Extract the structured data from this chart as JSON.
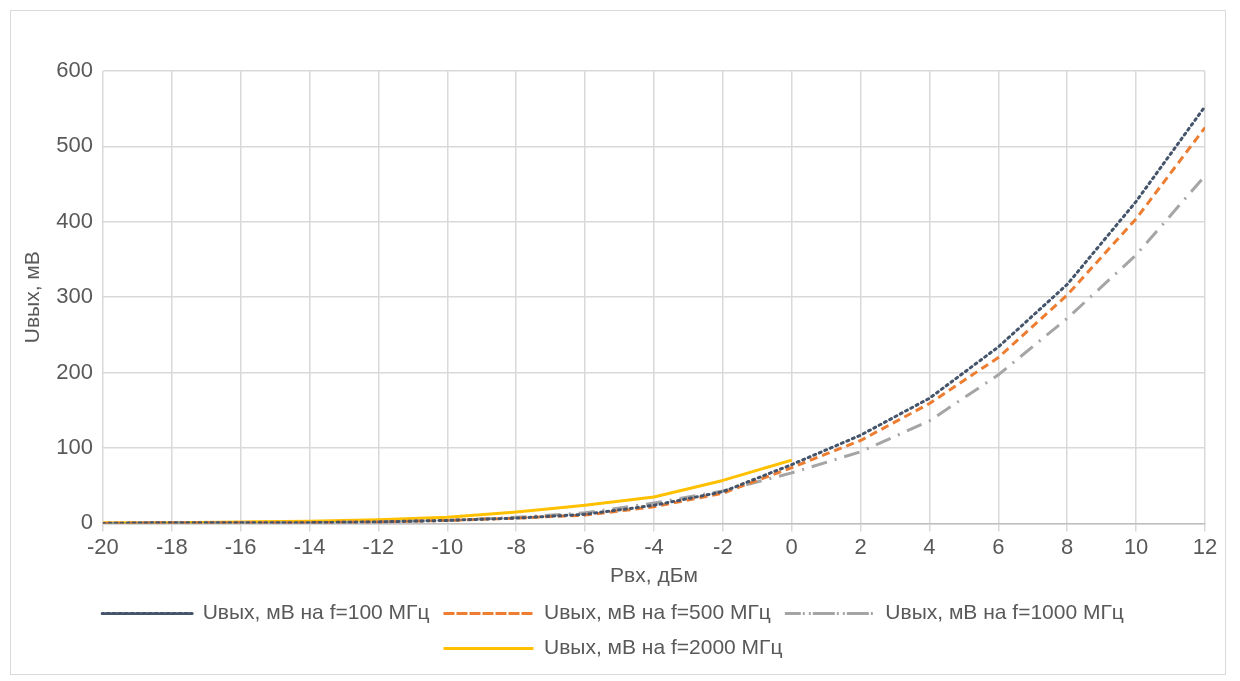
{
  "chart_data": {
    "type": "line",
    "xlabel": "Рвх, дБм",
    "ylabel": "Uвых, мВ",
    "x": [
      -20,
      -18,
      -16,
      -14,
      -12,
      -10,
      -8,
      -6,
      -4,
      -2,
      0,
      2,
      4,
      6,
      8,
      10,
      12
    ],
    "xlim": [
      -20,
      12
    ],
    "xticks": [
      -20,
      -18,
      -16,
      -14,
      -12,
      -10,
      -8,
      -6,
      -4,
      -2,
      0,
      2,
      4,
      6,
      8,
      10,
      12
    ],
    "ylim": [
      0,
      600
    ],
    "yticks": [
      0,
      100,
      200,
      300,
      400,
      500,
      600
    ],
    "grid": true,
    "legend": "bottom",
    "marker": "none",
    "series": [
      {
        "name": "Uвых, мВ на f=100 МГц",
        "color": "#44546a",
        "line_style": "dotted",
        "values": [
          0,
          1,
          1,
          1,
          2,
          4,
          7,
          12,
          24,
          42,
          78,
          117,
          166,
          234,
          317,
          427,
          553
        ]
      },
      {
        "name": "Uвых, мВ на f=500 МГц",
        "color": "#ed7d31",
        "line_style": "dashed",
        "values": [
          0,
          1,
          1,
          1,
          2,
          4,
          7,
          11,
          22,
          40,
          74,
          110,
          159,
          220,
          303,
          404,
          525
        ]
      },
      {
        "name": "Uвых, мВ на f=1000 МГц",
        "color": "#a5a5a5",
        "line_style": "dashdot",
        "values": [
          0,
          1,
          1,
          1,
          2,
          4,
          8,
          14,
          27,
          43,
          67,
          95,
          136,
          197,
          272,
          356,
          461
        ]
      },
      {
        "name": "Uвых, мВ на f=2000 МГц",
        "color": "#ffc000",
        "line_style": "solid",
        "values": [
          1,
          1,
          2,
          3,
          5,
          8,
          15,
          24,
          35,
          57,
          84,
          null,
          null,
          null,
          null,
          null,
          null
        ]
      }
    ]
  }
}
